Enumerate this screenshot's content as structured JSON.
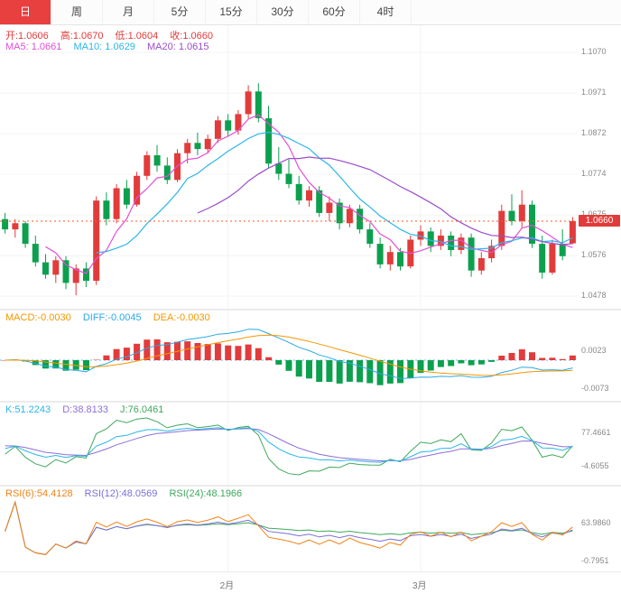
{
  "tabs": {
    "items": [
      {
        "label": "日",
        "active": true
      },
      {
        "label": "周",
        "active": false
      },
      {
        "label": "月",
        "active": false
      },
      {
        "label": "5分",
        "active": false
      },
      {
        "label": "15分",
        "active": false
      },
      {
        "label": "30分",
        "active": false
      },
      {
        "label": "60分",
        "active": false
      },
      {
        "label": "4时",
        "active": false
      }
    ]
  },
  "main": {
    "open_label": "开:1.0606",
    "high_label": "高:1.0670",
    "low_label": "低:1.0604",
    "close_label": "收:1.0660",
    "ma5_label": "MA5: 1.0661",
    "ma10_label": "MA10: 1.0629",
    "ma20_label": "MA20: 1.0615",
    "last_price_label": "1.0660"
  },
  "macd": {
    "macd_label": "MACD:-0.0030",
    "diff_label": "DIFF:-0.0045",
    "dea_label": "DEA:-0.0030"
  },
  "kdj": {
    "k_label": "K:51.2243",
    "d_label": "D:38.8133",
    "j_label": "J:76.0461"
  },
  "rsi": {
    "r6_label": "RSI(6):54.4128",
    "r12_label": "RSI(12):48.0569",
    "r24_label": "RSI(24):48.1966"
  },
  "colors": {
    "accent": "#e83f3f",
    "up": "#e23b3b",
    "down": "#0ca04e",
    "ma5": "#e24fd6",
    "ma10": "#2bb6e9",
    "ma20": "#9b4dca",
    "diff": "#2ba8e8",
    "dea": "#f39800",
    "k": "#2bb6e9",
    "d": "#8e6fd8",
    "j": "#3fa85c",
    "r6": "#f08418",
    "r12": "#7b6fd8",
    "r24": "#3fa85c",
    "last_line": "#ff5722"
  },
  "chart_data": [
    {
      "type": "candlestick",
      "name": "price",
      "ylim": [
        1.0478,
        1.107
      ],
      "y_ticks": [
        1.107,
        1.0971,
        1.0872,
        1.0774,
        1.0675,
        1.0576,
        1.0478
      ],
      "last_price": 1.066,
      "ohlc": {
        "open": 1.0606,
        "high": 1.067,
        "low": 1.0604,
        "close": 1.066
      },
      "ma_values": {
        "MA5": 1.0661,
        "MA10": 1.0629,
        "MA20": 1.0615
      },
      "x_ticks": [
        {
          "label": "2月",
          "index": 22
        },
        {
          "label": "3月",
          "index": 41
        }
      ],
      "candles": [
        [
          1.0665,
          1.068,
          1.063,
          1.064
        ],
        [
          1.064,
          1.0665,
          1.062,
          1.0655
        ],
        [
          1.0655,
          1.066,
          1.0595,
          1.0605
        ],
        [
          1.0605,
          1.0625,
          1.055,
          1.056
        ],
        [
          1.056,
          1.058,
          1.052,
          1.053
        ],
        [
          1.053,
          1.0575,
          1.051,
          1.0565
        ],
        [
          1.0565,
          1.0575,
          1.0495,
          1.051
        ],
        [
          1.051,
          1.0555,
          1.048,
          1.0545
        ],
        [
          1.0545,
          1.056,
          1.05,
          1.0515
        ],
        [
          1.0515,
          1.072,
          1.0505,
          1.071
        ],
        [
          1.071,
          1.073,
          1.065,
          1.0665
        ],
        [
          1.0665,
          1.075,
          1.0655,
          1.074
        ],
        [
          1.074,
          1.076,
          1.069,
          1.07
        ],
        [
          1.07,
          1.078,
          1.0695,
          1.077
        ],
        [
          1.077,
          1.083,
          1.076,
          1.082
        ],
        [
          1.082,
          1.0845,
          1.078,
          1.0795
        ],
        [
          1.0795,
          1.0815,
          1.075,
          1.076
        ],
        [
          1.076,
          1.0835,
          1.0755,
          1.0825
        ],
        [
          1.0825,
          1.086,
          1.08,
          1.085
        ],
        [
          1.085,
          1.0875,
          1.082,
          1.0835
        ],
        [
          1.0835,
          1.087,
          1.0825,
          1.086
        ],
        [
          1.086,
          1.0915,
          1.085,
          1.0905
        ],
        [
          1.0905,
          1.092,
          1.0865,
          1.088
        ],
        [
          1.088,
          1.093,
          1.087,
          1.092
        ],
        [
          1.092,
          1.099,
          1.091,
          1.0975
        ],
        [
          1.0975,
          1.0995,
          1.09,
          1.091
        ],
        [
          1.091,
          1.094,
          1.079,
          1.08
        ],
        [
          1.08,
          1.084,
          1.076,
          1.0775
        ],
        [
          1.0775,
          1.081,
          1.074,
          1.075
        ],
        [
          1.075,
          1.077,
          1.07,
          1.071
        ],
        [
          1.071,
          1.0745,
          1.0695,
          1.0735
        ],
        [
          1.0735,
          1.0745,
          1.067,
          1.068
        ],
        [
          1.068,
          1.072,
          1.066,
          1.0705
        ],
        [
          1.0705,
          1.0715,
          1.064,
          1.0655
        ],
        [
          1.0655,
          1.07,
          1.0645,
          1.069
        ],
        [
          1.069,
          1.07,
          1.063,
          1.064
        ],
        [
          1.064,
          1.0655,
          1.0595,
          1.0605
        ],
        [
          1.0605,
          1.062,
          1.0545,
          1.0555
        ],
        [
          1.0555,
          1.06,
          1.054,
          1.0585
        ],
        [
          1.0585,
          1.0595,
          1.054,
          1.055
        ],
        [
          1.055,
          1.0625,
          1.0545,
          1.0615
        ],
        [
          1.0615,
          1.065,
          1.06,
          1.0635
        ],
        [
          1.0635,
          1.0645,
          1.0585,
          1.06
        ],
        [
          1.06,
          1.064,
          1.059,
          1.0625
        ],
        [
          1.0625,
          1.0635,
          1.0575,
          1.059
        ],
        [
          1.059,
          1.063,
          1.058,
          1.062
        ],
        [
          1.062,
          1.063,
          1.0525,
          1.054
        ],
        [
          1.054,
          1.0585,
          1.053,
          1.057
        ],
        [
          1.057,
          1.0615,
          1.056,
          1.06
        ],
        [
          1.06,
          1.07,
          1.059,
          1.0685
        ],
        [
          1.0685,
          1.0725,
          1.065,
          1.066
        ],
        [
          1.066,
          1.0735,
          1.0645,
          1.07
        ],
        [
          1.07,
          1.071,
          1.0595,
          1.0605
        ],
        [
          1.0605,
          1.0625,
          1.052,
          1.0535
        ],
        [
          1.0535,
          1.0615,
          1.053,
          1.0605
        ],
        [
          1.0605,
          1.064,
          1.0565,
          1.0575
        ],
        [
          1.0606,
          1.067,
          1.0604,
          1.066
        ]
      ]
    },
    {
      "type": "bar",
      "name": "MACD",
      "readout": {
        "MACD": -0.003,
        "DIFF": -0.0045,
        "DEA": -0.003
      },
      "y_ticks": [
        0.0023,
        -0.0073
      ]
    },
    {
      "type": "line",
      "name": "KDJ",
      "readout": {
        "K": 51.2243,
        "D": 38.8133,
        "J": 76.0461
      },
      "y_ticks": [
        77.4661,
        -4.6055
      ]
    },
    {
      "type": "line",
      "name": "RSI",
      "readout": {
        "RSI6": 54.4128,
        "RSI12": 48.0569,
        "RSI24": 48.1966
      },
      "y_ticks": [
        63.986,
        -0.7951
      ]
    }
  ]
}
